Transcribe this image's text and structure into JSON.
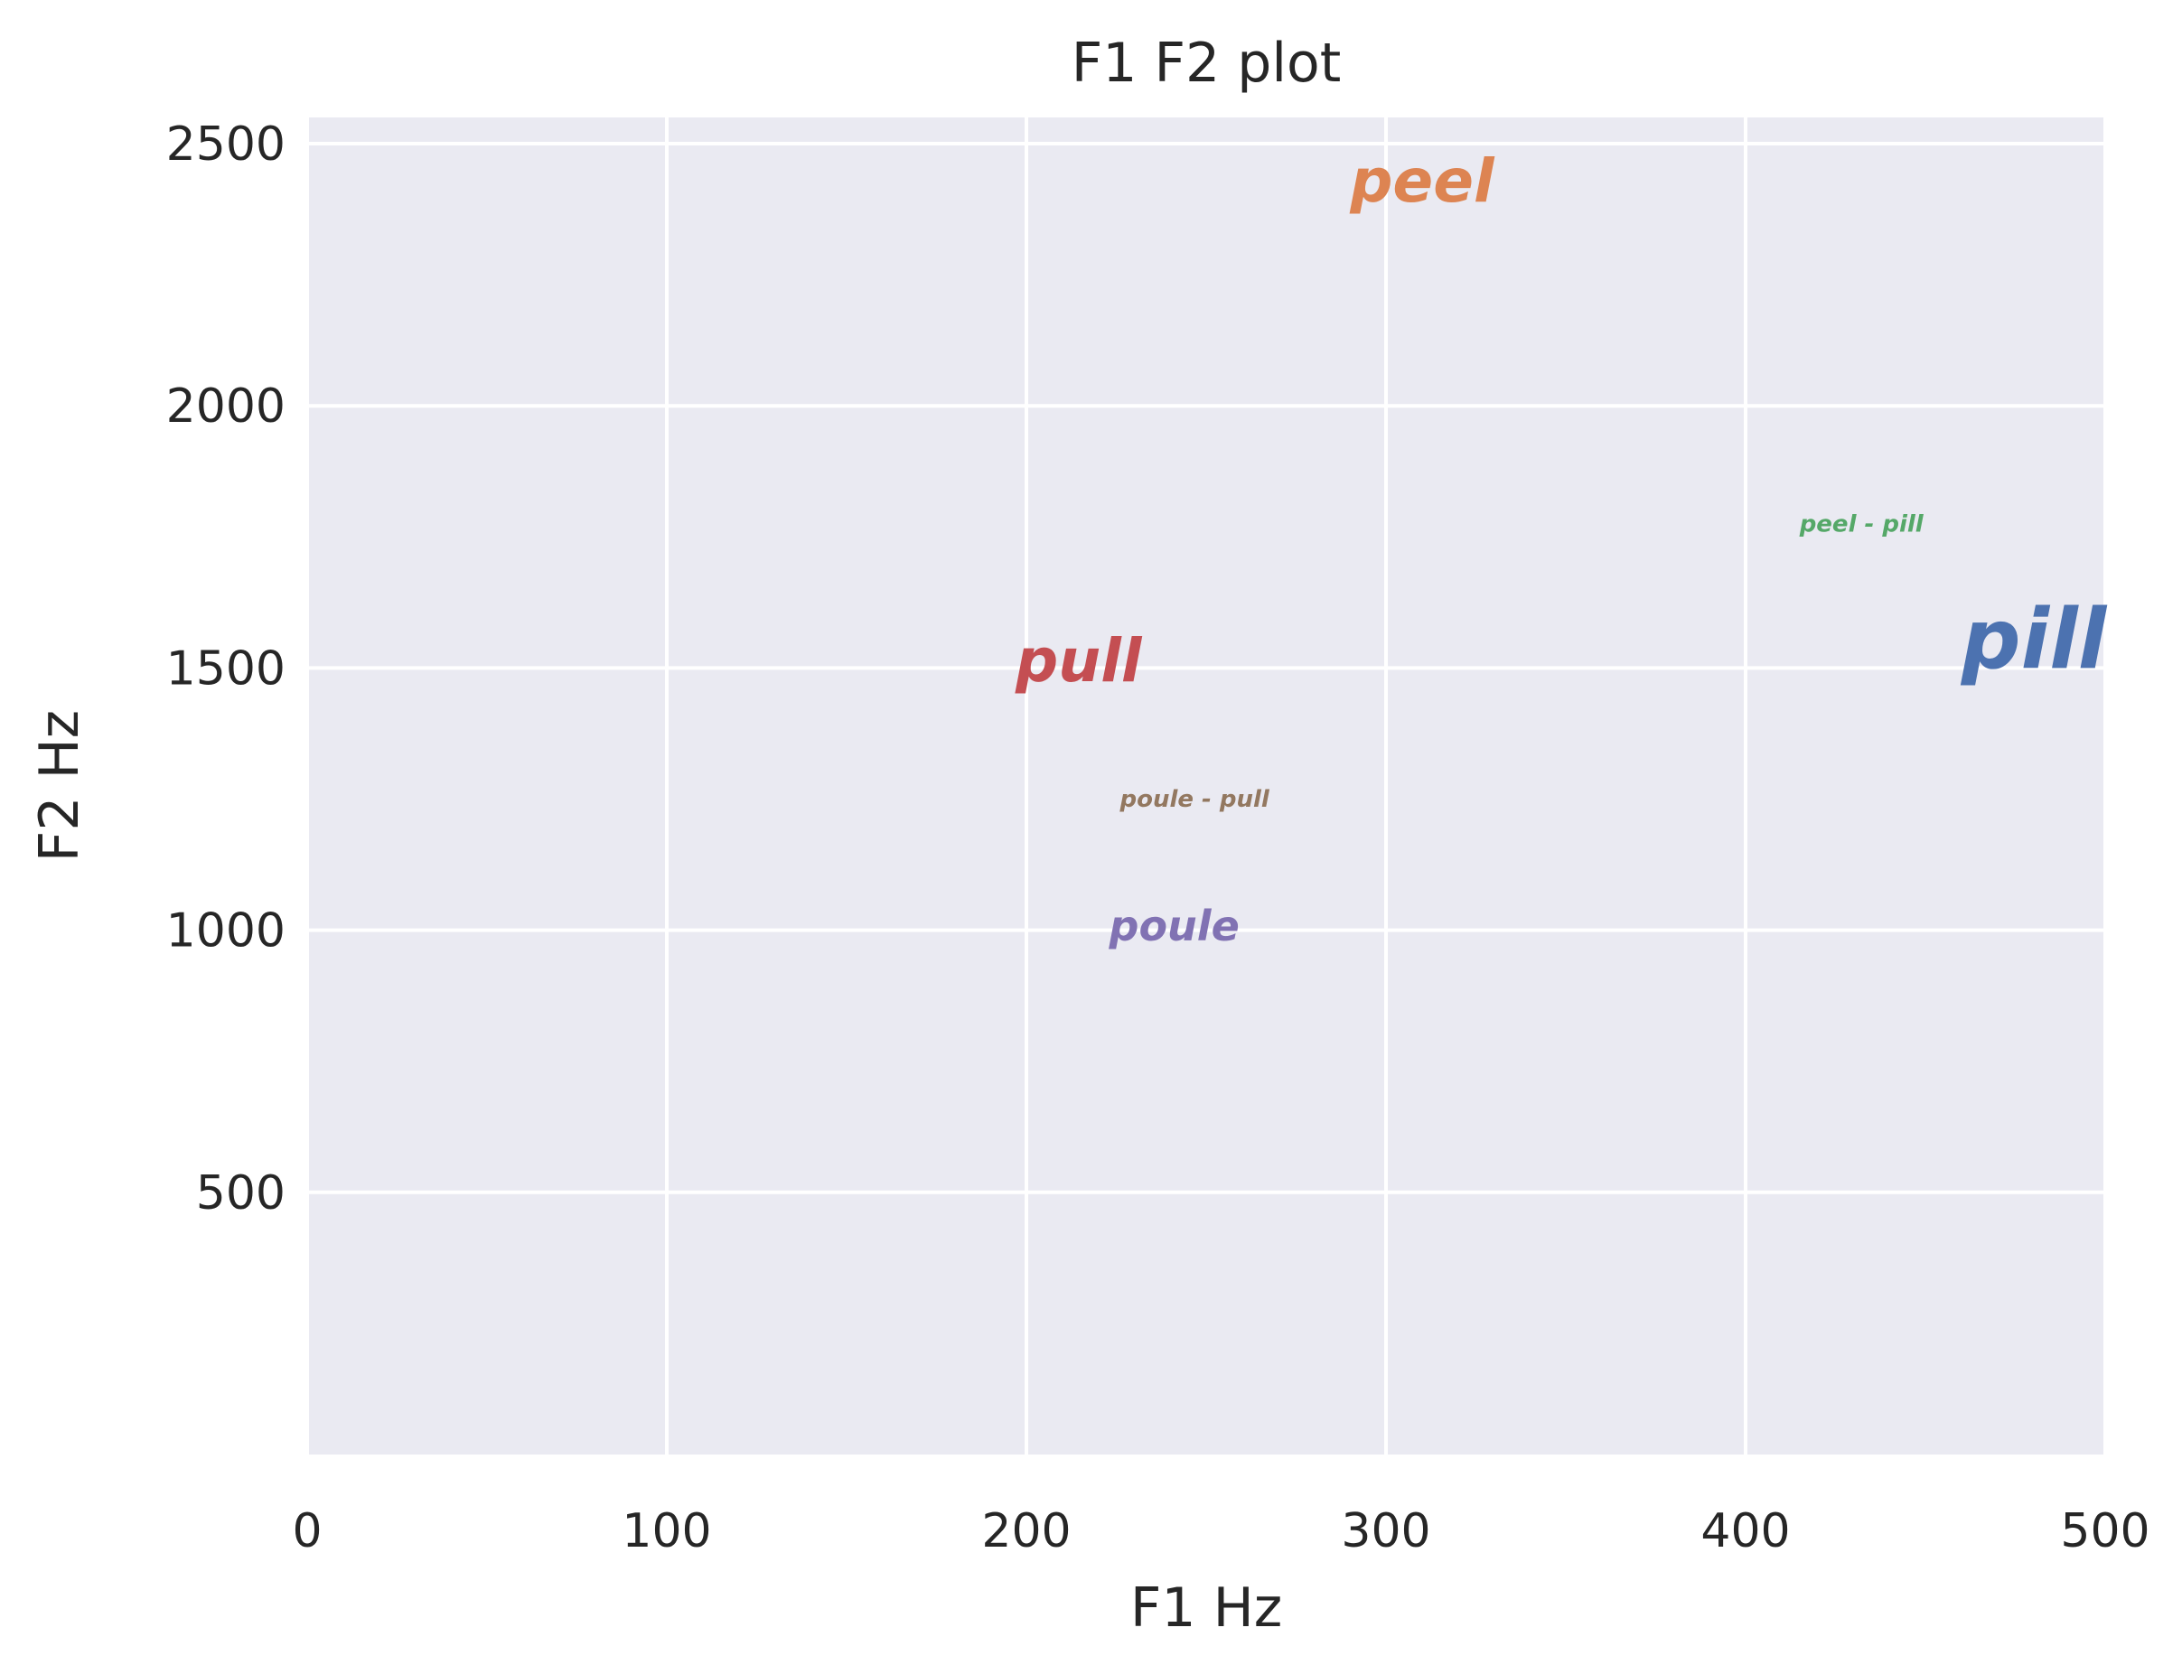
{
  "chart_data": {
    "type": "scatter",
    "title": "F1 F2 plot",
    "xlabel": "F1 Hz",
    "ylabel": "F2 Hz",
    "xlim": [
      0,
      500
    ],
    "ylim": [
      0,
      2550
    ],
    "xticks": [
      "0",
      "100",
      "200",
      "300",
      "400",
      "500"
    ],
    "xtick_values": [
      0,
      100,
      200,
      300,
      400,
      500
    ],
    "yticks": [
      "500",
      "1000",
      "1500",
      "2000",
      "2500"
    ],
    "ytick_values": [
      500,
      1000,
      1500,
      2000,
      2500
    ],
    "grid": true,
    "background": "#eaeaf2",
    "points": [
      {
        "label": "pill",
        "x": 460,
        "y": 1500,
        "color": "#4c72b0",
        "size": "large"
      },
      {
        "label": "peel",
        "x": 290,
        "y": 2390,
        "color": "#dd8452",
        "size": "medium"
      },
      {
        "label": "peel - pill",
        "x": 415,
        "y": 1760,
        "color": "#55a868",
        "size": "small"
      },
      {
        "label": "pull",
        "x": 197,
        "y": 1475,
        "color": "#c44e52",
        "size": "medium"
      },
      {
        "label": "poule",
        "x": 223,
        "y": 980,
        "color": "#8172b3",
        "size": "medium-small"
      },
      {
        "label": "poule - pull",
        "x": 226,
        "y": 1235,
        "color": "#937860",
        "size": "small"
      }
    ]
  }
}
